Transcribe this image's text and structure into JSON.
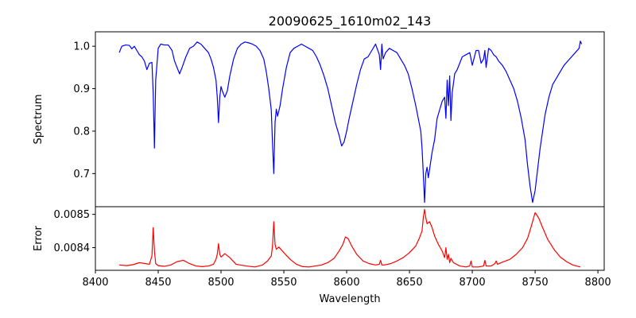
{
  "chart_data": {
    "type": "line",
    "title": "20090625_1610m02_143",
    "xlabel": "Wavelength",
    "xlim": [
      8400,
      8805
    ],
    "xticks": [
      "8400",
      "8450",
      "8500",
      "8550",
      "8600",
      "8650",
      "8700",
      "8750",
      "8800"
    ],
    "panels": [
      {
        "name": "spectrum",
        "ylabel": "Spectrum",
        "ylim": [
          0.622,
          1.034
        ],
        "yticks": [
          "0.7",
          "0.8",
          "0.9",
          "1.0"
        ],
        "color": "#0000ff",
        "x": [
          8419,
          8421,
          8424,
          8427,
          8429,
          8431,
          8433,
          8435,
          8437,
          8439,
          8441,
          8443,
          8445,
          8446,
          8447,
          8448,
          8450,
          8452,
          8455,
          8458,
          8461,
          8463,
          8465,
          8467,
          8469,
          8472,
          8475,
          8478,
          8481,
          8484,
          8487,
          8490,
          8492,
          8494,
          8496,
          8497,
          8498,
          8499,
          8500,
          8501,
          8503,
          8505,
          8507,
          8510,
          8513,
          8516,
          8519,
          8522,
          8525,
          8528,
          8531,
          8534,
          8536,
          8538,
          8540,
          8541,
          8542,
          8543,
          8544,
          8545,
          8547,
          8549,
          8552,
          8555,
          8558,
          8561,
          8564,
          8567,
          8570,
          8573,
          8576,
          8579,
          8582,
          8585,
          8588,
          8591,
          8594,
          8596,
          8598,
          8600,
          8602,
          8605,
          8608,
          8611,
          8614,
          8617,
          8620,
          8623,
          8626,
          8627,
          8628,
          8629,
          8631,
          8634,
          8637,
          8640,
          8643,
          8646,
          8649,
          8652,
          8655,
          8657,
          8659,
          8660,
          8661,
          8662,
          8663,
          8664,
          8665,
          8666,
          8668,
          8670,
          8672,
          8674,
          8676,
          8678,
          8679,
          8680,
          8681,
          8682,
          8683,
          8684,
          8686,
          8688,
          8690,
          8692,
          8695,
          8698,
          8700,
          8703,
          8705,
          8707,
          8709,
          8710,
          8711,
          8713,
          8715,
          8717,
          8719,
          8721,
          8724,
          8727,
          8730,
          8733,
          8736,
          8739,
          8742,
          8744,
          8746,
          8748,
          8750,
          8752,
          8754,
          8756,
          8758,
          8761,
          8764,
          8767,
          8770,
          8773,
          8776,
          8779,
          8782,
          8785,
          8786,
          8787
        ],
        "y": [
          0.985,
          1.0,
          1.003,
          1.002,
          0.994,
          1.0,
          0.99,
          0.98,
          0.975,
          0.965,
          0.945,
          0.96,
          0.962,
          0.89,
          0.76,
          0.92,
          0.995,
          1.005,
          1.003,
          1.003,
          0.99,
          0.965,
          0.95,
          0.935,
          0.95,
          0.975,
          0.995,
          1.0,
          1.01,
          1.005,
          0.995,
          0.985,
          0.97,
          0.95,
          0.92,
          0.88,
          0.82,
          0.88,
          0.905,
          0.895,
          0.88,
          0.895,
          0.93,
          0.97,
          0.995,
          1.005,
          1.01,
          1.008,
          1.005,
          1.0,
          0.99,
          0.97,
          0.94,
          0.9,
          0.85,
          0.77,
          0.7,
          0.82,
          0.852,
          0.835,
          0.86,
          0.9,
          0.95,
          0.985,
          0.995,
          1.0,
          1.005,
          1.0,
          0.995,
          0.99,
          0.975,
          0.955,
          0.93,
          0.9,
          0.86,
          0.82,
          0.79,
          0.765,
          0.775,
          0.8,
          0.83,
          0.87,
          0.91,
          0.945,
          0.97,
          0.975,
          0.99,
          1.005,
          0.98,
          0.945,
          1.005,
          0.97,
          0.985,
          0.995,
          0.99,
          0.985,
          0.97,
          0.955,
          0.935,
          0.9,
          0.86,
          0.83,
          0.8,
          0.76,
          0.7,
          0.632,
          0.7,
          0.715,
          0.69,
          0.71,
          0.75,
          0.78,
          0.83,
          0.85,
          0.87,
          0.88,
          0.83,
          0.92,
          0.86,
          0.93,
          0.825,
          0.89,
          0.935,
          0.945,
          0.96,
          0.975,
          0.98,
          0.985,
          0.955,
          0.99,
          0.99,
          0.96,
          0.97,
          0.99,
          0.95,
          0.995,
          0.99,
          0.98,
          0.975,
          0.965,
          0.955,
          0.94,
          0.92,
          0.9,
          0.87,
          0.83,
          0.78,
          0.72,
          0.67,
          0.632,
          0.66,
          0.71,
          0.76,
          0.8,
          0.84,
          0.88,
          0.91,
          0.925,
          0.94,
          0.955,
          0.965,
          0.975,
          0.985,
          0.995,
          1.012,
          1.005
        ]
      },
      {
        "name": "error",
        "ylabel": "Error",
        "ylim": [
          0.008332,
          0.008523
        ],
        "yticks": [
          "0.0084",
          "0.0085"
        ],
        "color": "#ff0000",
        "x": [
          8419,
          8425,
          8430,
          8435,
          8440,
          8443,
          8445,
          8446,
          8447,
          8448,
          8450,
          8455,
          8460,
          8465,
          8470,
          8475,
          8480,
          8485,
          8490,
          8494,
          8496,
          8497,
          8498,
          8499,
          8500,
          8503,
          8507,
          8512,
          8520,
          8527,
          8533,
          8537,
          8540,
          8541,
          8542,
          8543,
          8544,
          8546,
          8550,
          8555,
          8560,
          8565,
          8570,
          8575,
          8580,
          8585,
          8590,
          8594,
          8597,
          8599,
          8601,
          8604,
          8608,
          8613,
          8618,
          8623,
          8626,
          8627,
          8628,
          8630,
          8635,
          8640,
          8645,
          8650,
          8655,
          8658,
          8660,
          8661,
          8662,
          8663,
          8664,
          8666,
          8668,
          8670,
          8673,
          8676,
          8678,
          8679,
          8680,
          8681,
          8682,
          8683,
          8685,
          8690,
          8695,
          8698,
          8699,
          8700,
          8705,
          8709,
          8710,
          8711,
          8715,
          8718,
          8719,
          8720,
          8725,
          8730,
          8735,
          8740,
          8744,
          8747,
          8749,
          8750,
          8751,
          8753,
          8756,
          8760,
          8765,
          8770,
          8775,
          8780,
          8786
        ],
        "y": [
          0.008348,
          0.008346,
          0.008349,
          0.008355,
          0.008352,
          0.00835,
          0.008375,
          0.00846,
          0.00839,
          0.008352,
          0.008346,
          0.008344,
          0.008348,
          0.008358,
          0.008362,
          0.008352,
          0.008345,
          0.008343,
          0.008345,
          0.00835,
          0.008365,
          0.00838,
          0.008412,
          0.00838,
          0.008372,
          0.008382,
          0.00837,
          0.00835,
          0.008345,
          0.008342,
          0.008348,
          0.00836,
          0.008375,
          0.008405,
          0.008478,
          0.00841,
          0.008395,
          0.008402,
          0.008385,
          0.008365,
          0.00835,
          0.008343,
          0.008342,
          0.008345,
          0.008348,
          0.008355,
          0.008368,
          0.00839,
          0.00841,
          0.008432,
          0.008428,
          0.008405,
          0.00838,
          0.00836,
          0.008352,
          0.008348,
          0.00835,
          0.008362,
          0.008348,
          0.008348,
          0.008352,
          0.00836,
          0.00837,
          0.008385,
          0.008405,
          0.00843,
          0.00845,
          0.00849,
          0.008515,
          0.00849,
          0.008472,
          0.008478,
          0.00846,
          0.008435,
          0.00841,
          0.00839,
          0.00837,
          0.0084,
          0.008365,
          0.00838,
          0.008355,
          0.008368,
          0.008355,
          0.008345,
          0.008342,
          0.008345,
          0.00836,
          0.008342,
          0.008342,
          0.008345,
          0.008362,
          0.008345,
          0.008345,
          0.008352,
          0.00836,
          0.00835,
          0.008358,
          0.008365,
          0.00838,
          0.0084,
          0.008428,
          0.008465,
          0.008492,
          0.008505,
          0.0085,
          0.008488,
          0.00846,
          0.008425,
          0.008395,
          0.008372,
          0.008358,
          0.008348,
          0.008342
        ]
      }
    ]
  }
}
